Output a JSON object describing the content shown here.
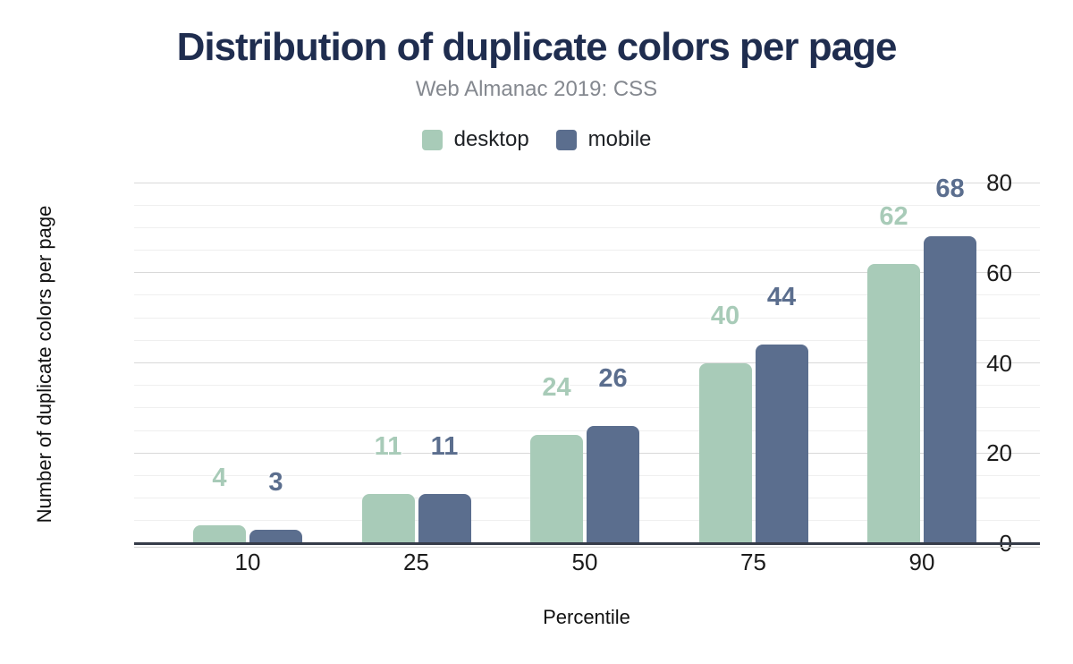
{
  "chart_data": {
    "type": "bar",
    "title": "Distribution of duplicate colors per page",
    "subtitle": "Web Almanac 2019: CSS",
    "xlabel": "Percentile",
    "ylabel": "Number of duplicate colors per page",
    "categories": [
      "10",
      "25",
      "50",
      "75",
      "90"
    ],
    "series": [
      {
        "name": "desktop",
        "color": "#a8cbb8",
        "values": [
          4,
          11,
          24,
          40,
          62
        ]
      },
      {
        "name": "mobile",
        "color": "#5b6e8e",
        "values": [
          3,
          11,
          26,
          44,
          68
        ]
      }
    ],
    "ylim": [
      0,
      80
    ],
    "y_ticks": [
      0,
      20,
      40,
      60,
      80
    ],
    "grid_minor_step": 5,
    "grid_major_step": 20,
    "grid": true,
    "legend_position": "top",
    "data_labels": true
  },
  "colors": {
    "title": "#1f2d4f",
    "subtitle": "#84888f",
    "tick_text": "#1b1b1b",
    "grid_minor": "#efefef",
    "grid_major": "#d9d9d9",
    "axis_line": "#363c49",
    "background": "#ffffff"
  }
}
